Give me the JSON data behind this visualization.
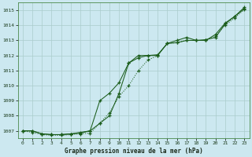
{
  "title": "Graphe pression niveau de la mer (hPa)",
  "bg_color": "#cce8f0",
  "grid_color": "#aacccc",
  "line_color": "#1a5c1a",
  "x_labels": [
    "0",
    "1",
    "2",
    "3",
    "4",
    "5",
    "6",
    "7",
    "8",
    "9",
    "10",
    "11",
    "12",
    "13",
    "14",
    "15",
    "16",
    "17",
    "18",
    "19",
    "20",
    "21",
    "22",
    "23"
  ],
  "x_values": [
    0,
    1,
    2,
    3,
    4,
    5,
    6,
    7,
    8,
    9,
    10,
    11,
    12,
    13,
    14,
    15,
    16,
    17,
    18,
    19,
    20,
    21,
    22,
    23
  ],
  "ylim": [
    1006.5,
    1015.5
  ],
  "yticks": [
    1007,
    1008,
    1009,
    1010,
    1011,
    1012,
    1013,
    1014,
    1015
  ],
  "series1": [
    1007.0,
    1007.0,
    1006.8,
    1006.75,
    1006.75,
    1006.8,
    1006.9,
    1007.0,
    1007.5,
    1008.0,
    1009.5,
    1011.5,
    1012.0,
    1012.0,
    1012.05,
    1012.8,
    1012.85,
    1013.0,
    1013.0,
    1013.05,
    1013.2,
    1014.1,
    1014.6,
    1015.2
  ],
  "series2": [
    1007.0,
    1006.9,
    1006.75,
    1006.7,
    1006.7,
    1006.75,
    1006.8,
    1006.85,
    1007.5,
    1008.2,
    1009.3,
    1010.0,
    1011.0,
    1011.7,
    1012.0,
    1012.8,
    1012.85,
    1013.0,
    1013.0,
    1013.0,
    1013.3,
    1014.0,
    1014.5,
    1015.05
  ],
  "series3": [
    1007.0,
    1007.0,
    1006.8,
    1006.75,
    1006.75,
    1006.8,
    1006.85,
    1007.0,
    1009.0,
    1009.5,
    1010.2,
    1011.5,
    1011.85,
    1012.0,
    1012.0,
    1012.8,
    1013.0,
    1013.2,
    1013.0,
    1013.0,
    1013.4,
    1014.15,
    1014.6,
    1015.1
  ],
  "figsize": [
    3.2,
    2.0
  ],
  "dpi": 100
}
